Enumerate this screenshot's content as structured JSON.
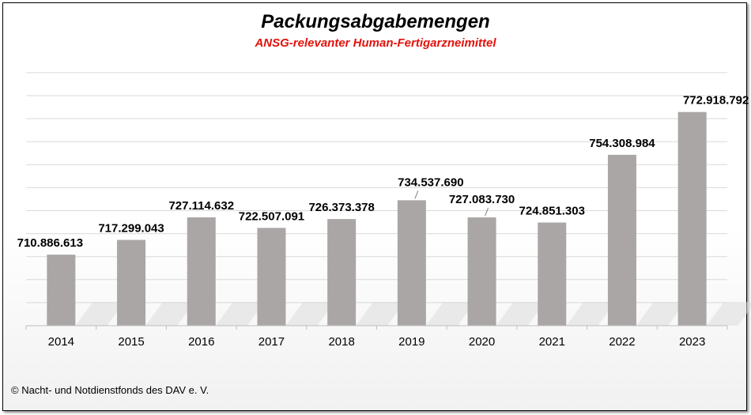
{
  "chart_data": {
    "type": "bar",
    "title": "Packungsabgabemengen",
    "subtitle": "ANSG-relevanter Human-Fertigarzneimittel",
    "categories": [
      "2014",
      "2015",
      "2016",
      "2017",
      "2018",
      "2019",
      "2020",
      "2021",
      "2022",
      "2023"
    ],
    "values": [
      710886613,
      717299043,
      727114632,
      722507091,
      726373378,
      734537690,
      727083730,
      724851303,
      754308984,
      772918792
    ],
    "value_labels": [
      "710.886.613",
      "717.299.043",
      "727.114.632",
      "722.507.091",
      "726.373.378",
      "734.537.690",
      "727.083.730",
      "724.851.303",
      "754.308.984",
      "772.918.792"
    ],
    "xlabel": "",
    "ylabel": "",
    "ylim": [
      680000000,
      790000000
    ],
    "grid": true,
    "bar_color": "#aaa6a5",
    "title_color": "#000000",
    "subtitle_color": "#e3120b"
  },
  "footer": "© Nacht- und Notdienstfonds  des DAV e. V."
}
